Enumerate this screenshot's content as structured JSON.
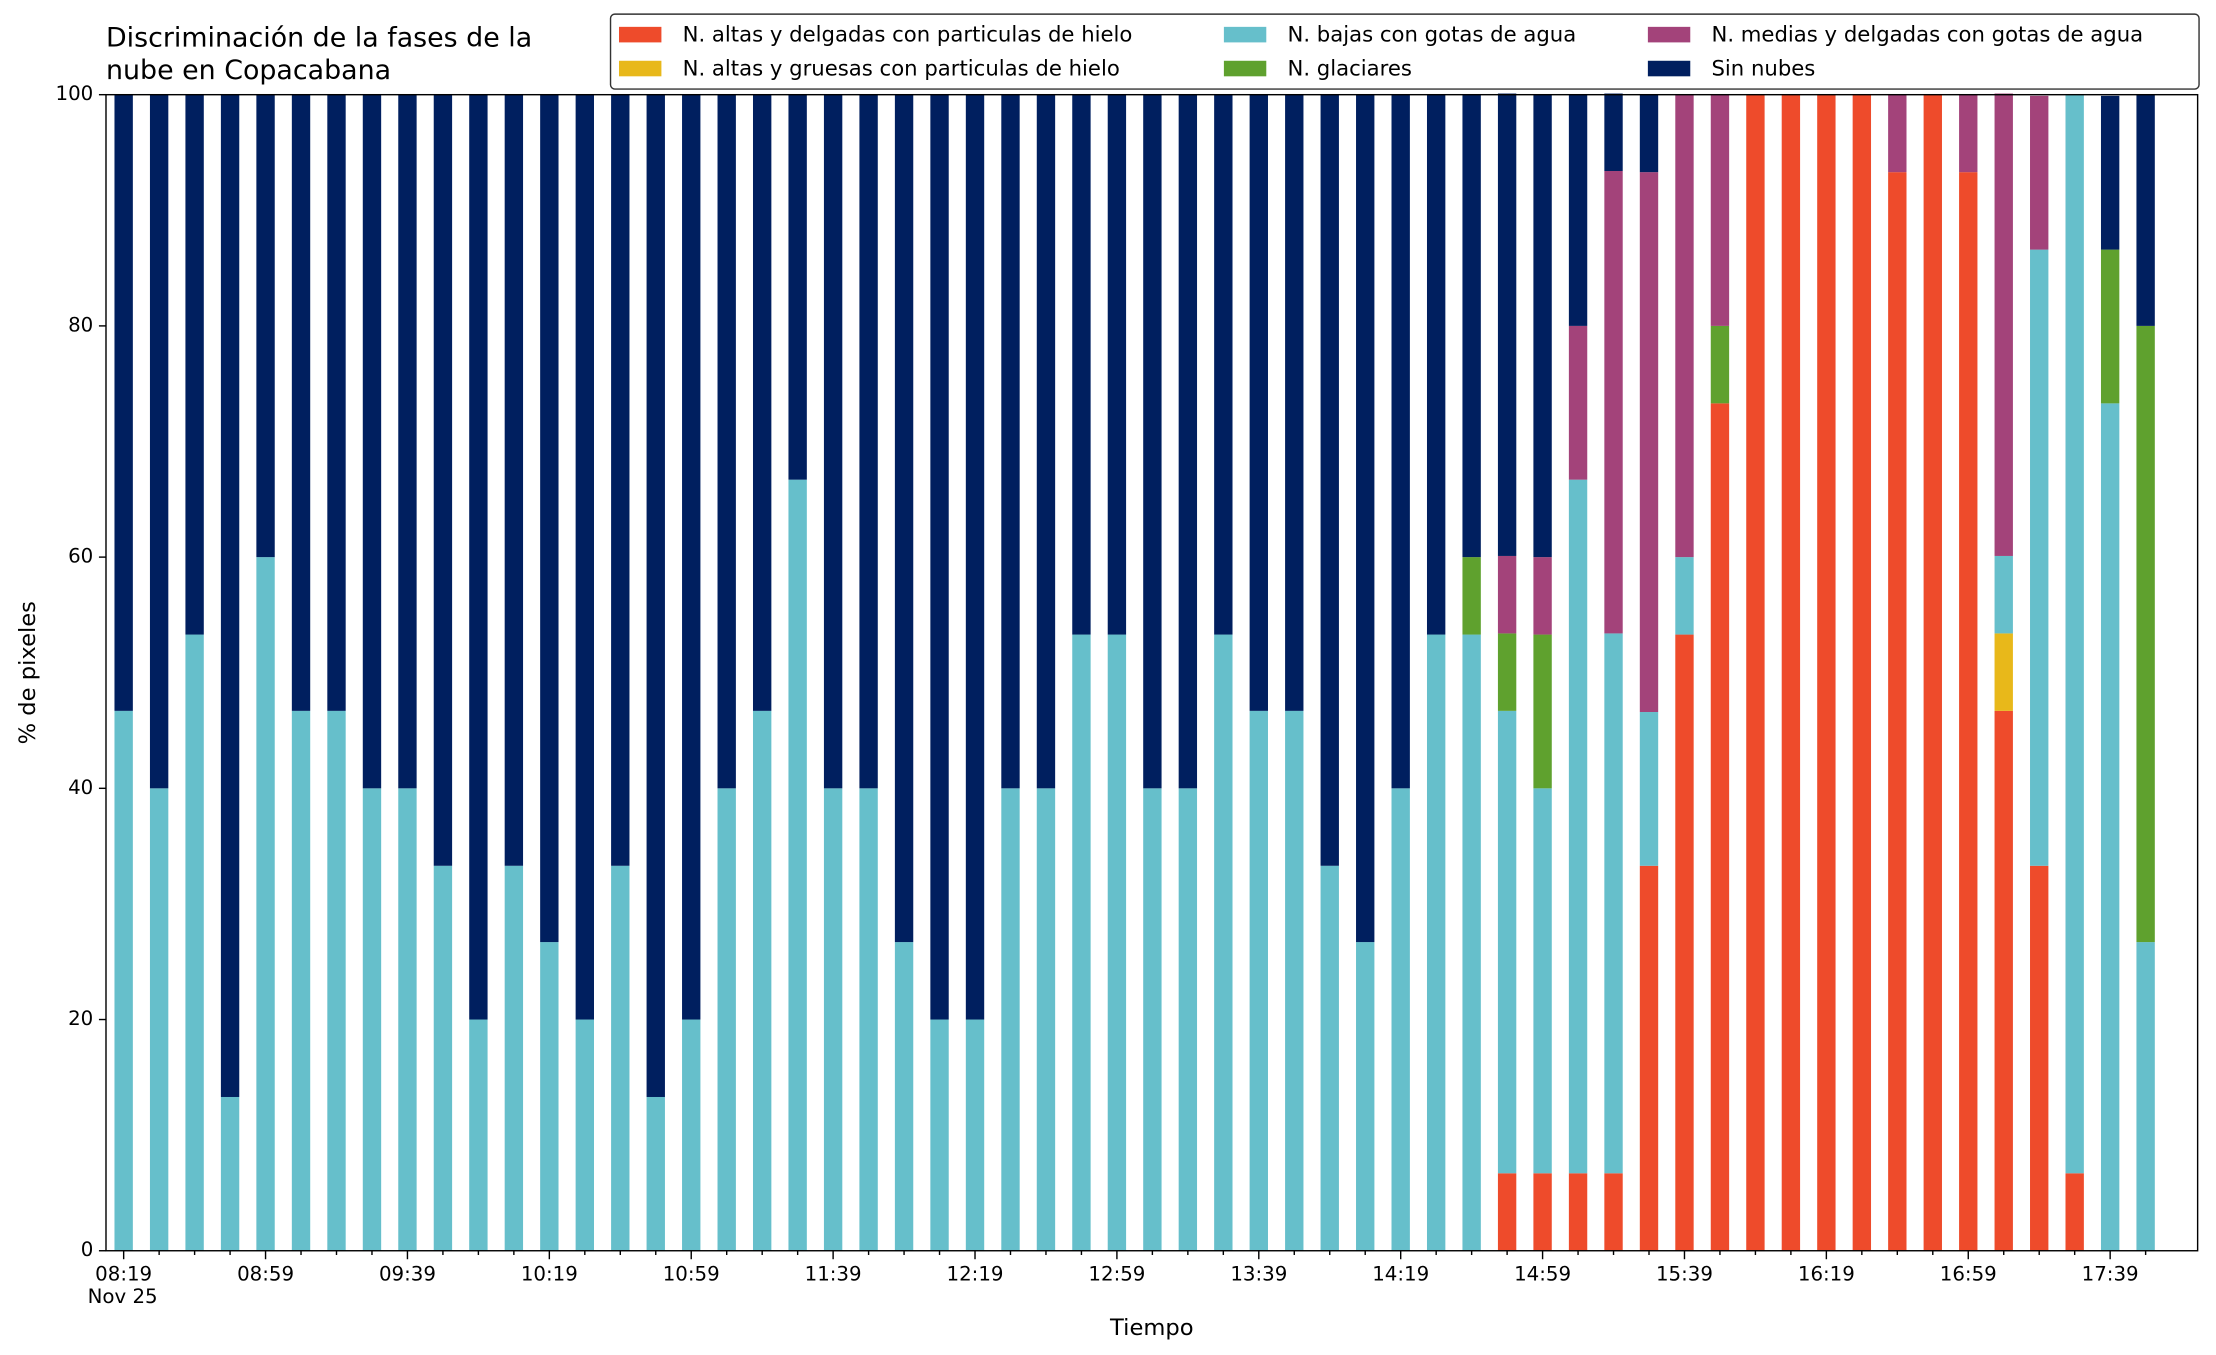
{
  "chart_data": {
    "type": "stacked_bar",
    "title": "Discriminación de la fases de la nube en Copacabana",
    "xlabel": "Tiempo",
    "ylabel": "% de pixeles",
    "date_label": "Nov 25",
    "categories": [
      "08:19",
      null,
      null,
      null,
      "08:59",
      null,
      null,
      null,
      "09:39",
      null,
      null,
      null,
      "10:19",
      null,
      null,
      null,
      "10:59",
      null,
      null,
      null,
      "11:39",
      null,
      null,
      null,
      "12:19",
      null,
      null,
      null,
      "12:59",
      null,
      null,
      null,
      "13:39",
      null,
      null,
      null,
      "14:19",
      null,
      null,
      null,
      "14:59",
      null,
      null,
      null,
      "15:39",
      null,
      null,
      null,
      "16:19",
      null,
      null,
      null,
      "16:59",
      null,
      null,
      null,
      "17:39",
      null
    ],
    "ylim": [
      0,
      100
    ],
    "yticks": [
      0,
      20,
      40,
      60,
      80,
      100
    ],
    "legend": "top-right",
    "series": [
      {
        "name": "N. altas y delgadas con particulas de hielo",
        "color": "#ee4b2b",
        "values": [
          0,
          0,
          0,
          0,
          0,
          0,
          0,
          0,
          0,
          0,
          0,
          0,
          0,
          0,
          0,
          0,
          0,
          0,
          0,
          0,
          0,
          0,
          0,
          0,
          0,
          0,
          0,
          0,
          0,
          0,
          0,
          0,
          0,
          0,
          0,
          0,
          0,
          0,
          0,
          6.7,
          6.7,
          6.7,
          6.7,
          33.3,
          53.3,
          73.3,
          100,
          100,
          100,
          100,
          93.3,
          100,
          93.3,
          46.7,
          33.3,
          6.7,
          0,
          0
        ]
      },
      {
        "name": "N. altas y gruesas con particulas de hielo",
        "color": "#e8b81a",
        "values": [
          0,
          0,
          0,
          0,
          0,
          0,
          0,
          0,
          0,
          0,
          0,
          0,
          0,
          0,
          0,
          0,
          0,
          0,
          0,
          0,
          0,
          0,
          0,
          0,
          0,
          0,
          0,
          0,
          0,
          0,
          0,
          0,
          0,
          0,
          0,
          0,
          0,
          0,
          0,
          0,
          0,
          0,
          0,
          0,
          0,
          0,
          0,
          0,
          0,
          0,
          0,
          0,
          0,
          6.7,
          0,
          0,
          0,
          0
        ]
      },
      {
        "name": "N. bajas con gotas de agua",
        "color": "#66bfcb",
        "values": [
          46.7,
          40,
          53.3,
          13.3,
          60,
          46.7,
          46.7,
          40,
          40,
          33.3,
          20,
          33.3,
          26.7,
          20,
          33.3,
          13.3,
          20,
          40,
          46.7,
          66.7,
          40,
          40,
          26.7,
          20,
          20,
          40,
          40,
          53.3,
          53.3,
          40,
          40,
          53.3,
          46.7,
          46.7,
          33.3,
          26.7,
          40,
          53.3,
          53.3,
          40,
          33.3,
          60,
          46.7,
          13.3,
          6.7,
          0,
          0,
          0,
          0,
          0,
          0,
          0,
          0,
          6.7,
          53.3,
          93.3,
          73.3,
          26.7
        ]
      },
      {
        "name": "N. glaciares",
        "color": "#5fa12e",
        "values": [
          0,
          0,
          0,
          0,
          0,
          0,
          0,
          0,
          0,
          0,
          0,
          0,
          0,
          0,
          0,
          0,
          0,
          0,
          0,
          0,
          0,
          0,
          0,
          0,
          0,
          0,
          0,
          0,
          0,
          0,
          0,
          0,
          0,
          0,
          0,
          0,
          0,
          0,
          6.7,
          6.7,
          13.3,
          0,
          0,
          0,
          0,
          6.7,
          0,
          0,
          0,
          0,
          0,
          0,
          0,
          0,
          0,
          0,
          13.3,
          53.3
        ]
      },
      {
        "name": "N. medias y delgadas con gotas de agua",
        "color": "#a3437a",
        "values": [
          0,
          0,
          0,
          0,
          0,
          0,
          0,
          0,
          0,
          0,
          0,
          0,
          0,
          0,
          0,
          0,
          0,
          0,
          0,
          0,
          0,
          0,
          0,
          0,
          0,
          0,
          0,
          0,
          0,
          0,
          0,
          0,
          0,
          0,
          0,
          0,
          0,
          0,
          0,
          6.7,
          6.7,
          13.3,
          40,
          46.7,
          40,
          20,
          0,
          0,
          0,
          0,
          6.7,
          0,
          6.7,
          40,
          13.3,
          0,
          0,
          0
        ]
      },
      {
        "name": "Sin nubes",
        "color": "#001f5f",
        "values": [
          53.3,
          60,
          46.7,
          86.7,
          40,
          53.3,
          53.3,
          60,
          60,
          66.7,
          80,
          66.7,
          73.3,
          80,
          66.7,
          86.7,
          80,
          60,
          53.3,
          33.3,
          60,
          60,
          73.3,
          80,
          80,
          60,
          60,
          46.7,
          46.7,
          60,
          60,
          46.7,
          53.3,
          53.3,
          66.7,
          73.3,
          60,
          46.7,
          40,
          40,
          40,
          20,
          6.7,
          6.7,
          0,
          0,
          0,
          0,
          0,
          0,
          0,
          0,
          0,
          0,
          0,
          0,
          13.3,
          20
        ]
      }
    ]
  }
}
